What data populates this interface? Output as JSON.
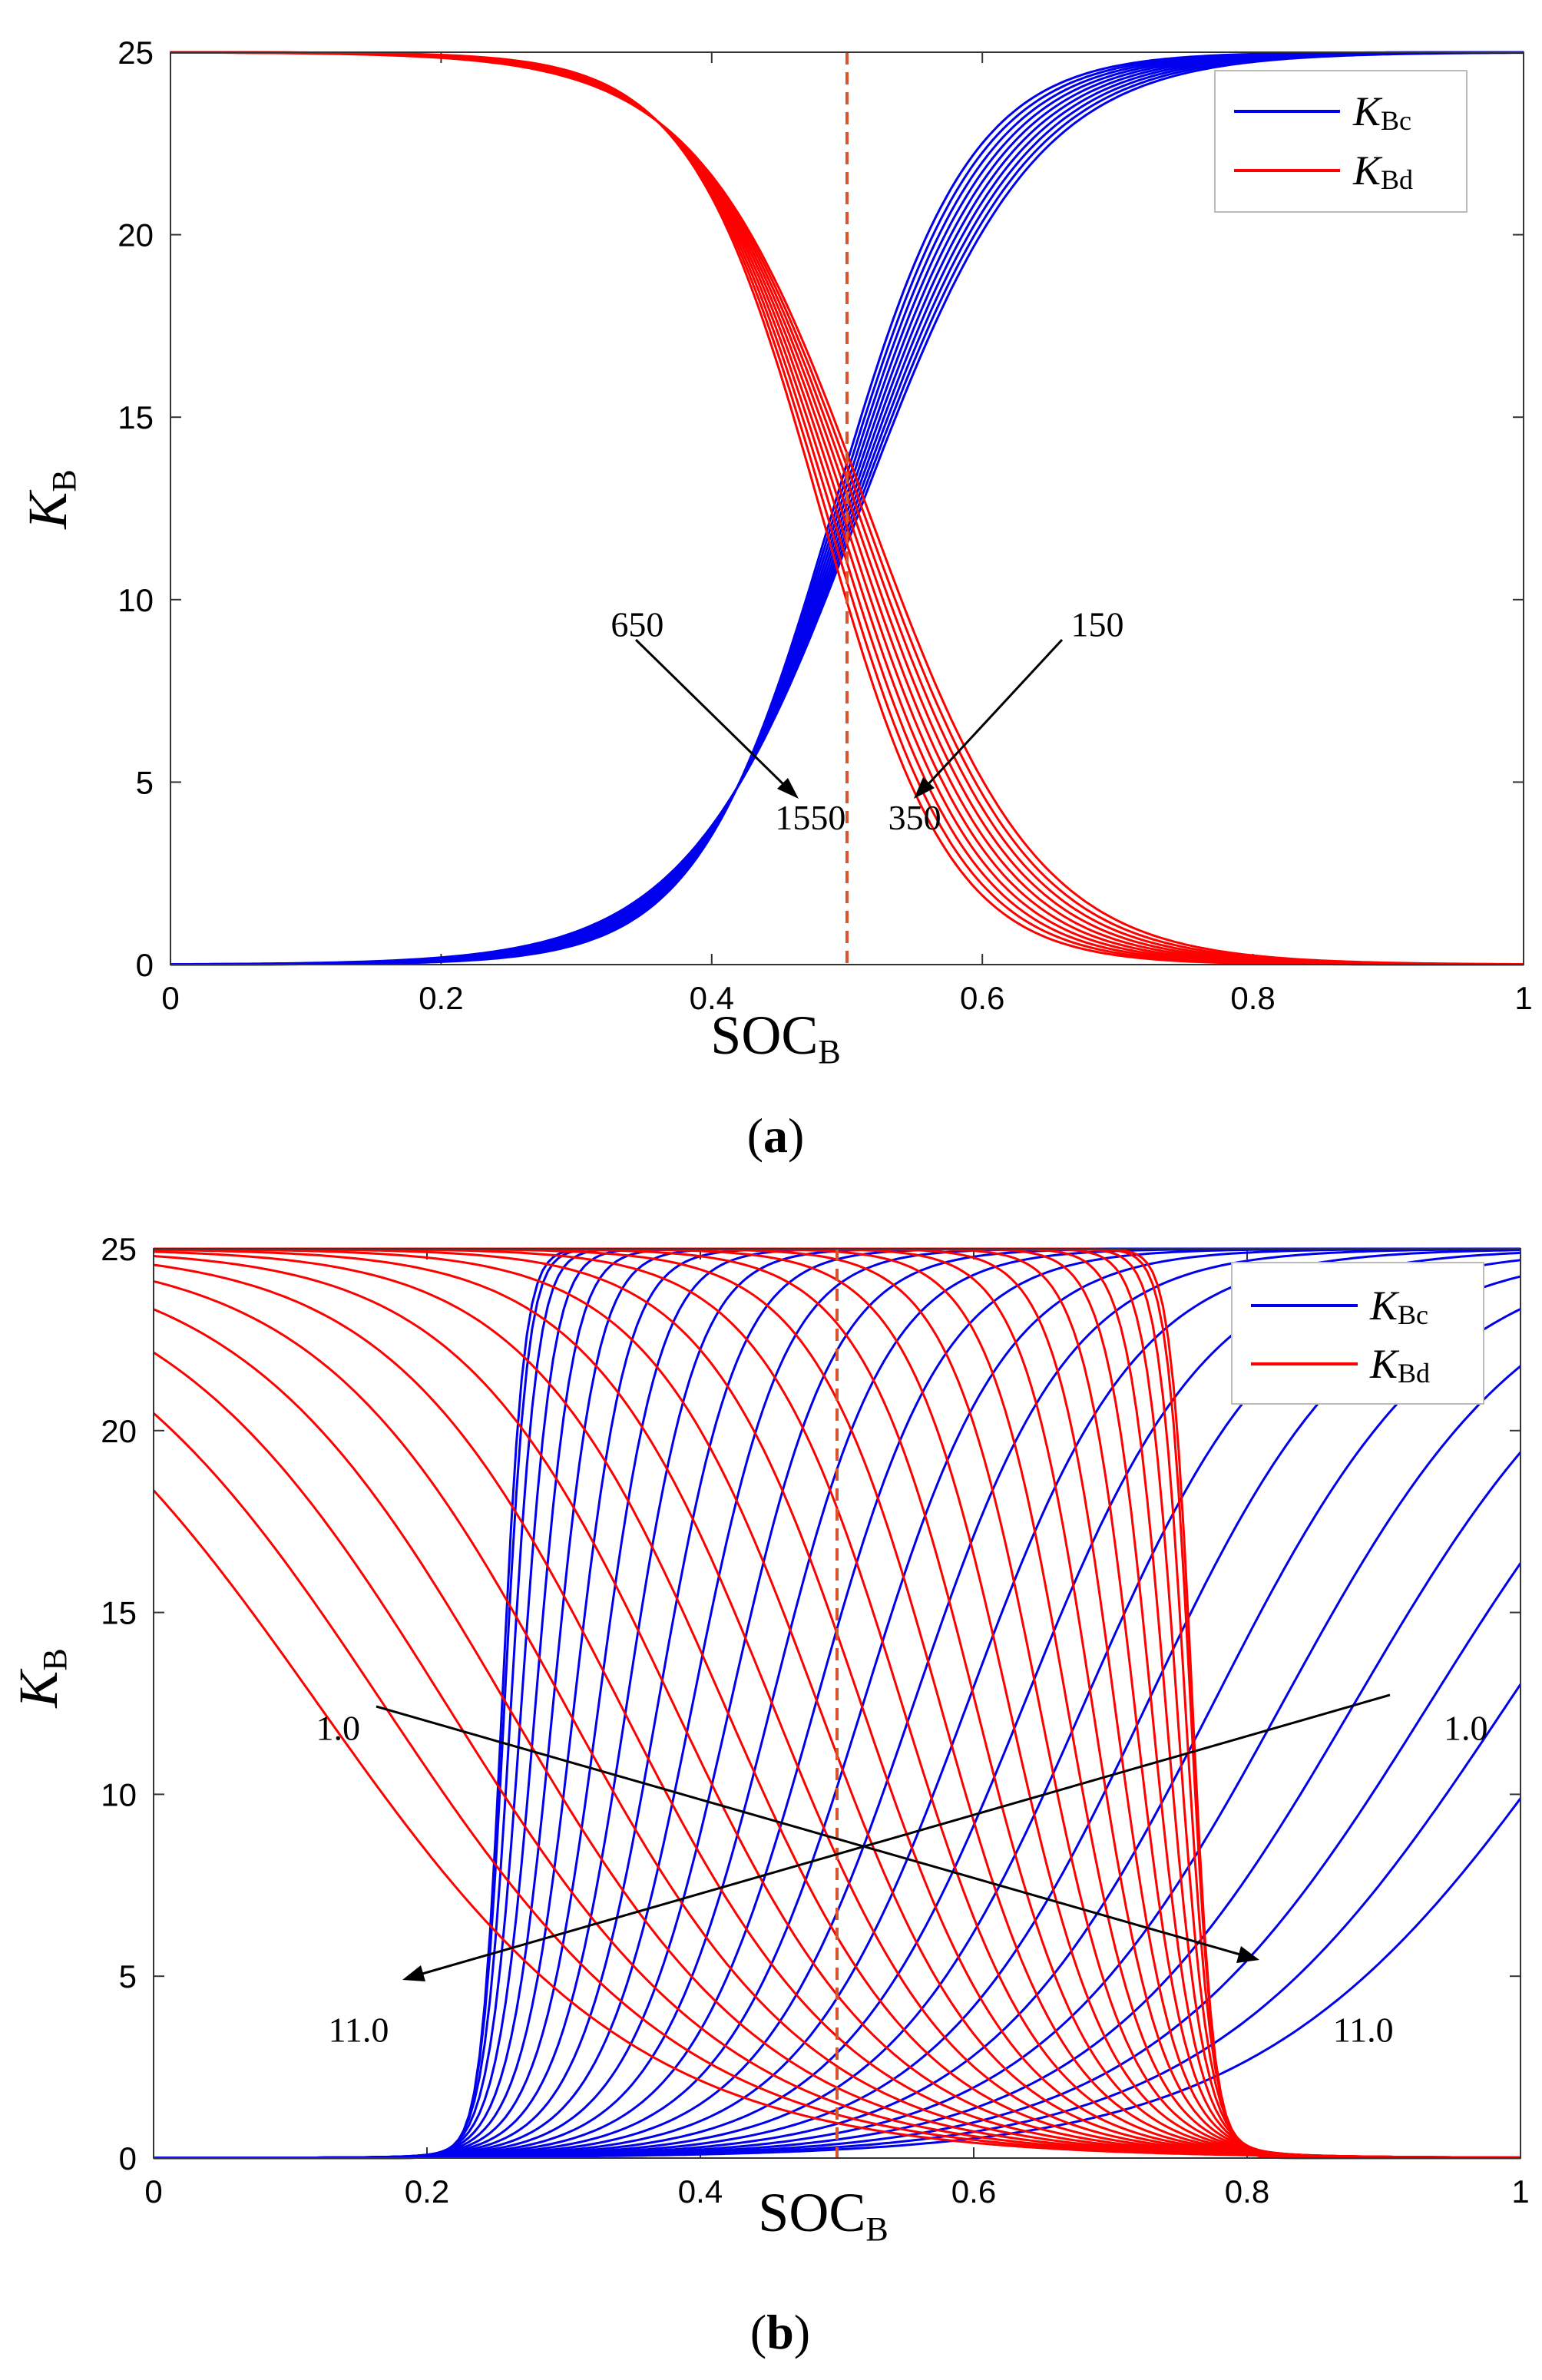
{
  "figure": {
    "panels": [
      {
        "label_open": "(",
        "label_letter": "a",
        "label_close": ")"
      },
      {
        "label_open": "(",
        "label_letter": "b",
        "label_close": ")"
      }
    ]
  },
  "chart_data": [
    {
      "type": "line",
      "panel": "a",
      "xlabel_main": "SOC",
      "xlabel_sub": "B",
      "ylabel_main": "K",
      "ylabel_sub": "B",
      "xlim": [
        0,
        1
      ],
      "ylim": [
        0,
        25
      ],
      "xticks": [
        0,
        0.2,
        0.4,
        0.6,
        0.8,
        1
      ],
      "xtick_labels": [
        "0",
        "0.2",
        "0.4",
        "0.6",
        "0.8",
        "1"
      ],
      "yticks": [
        0,
        5,
        10,
        15,
        20,
        25
      ],
      "ytick_labels": [
        "0",
        "5",
        "10",
        "15",
        "20",
        "25"
      ],
      "reference_line": {
        "x": 0.5,
        "style": "dashed",
        "color": "#d9542c"
      },
      "legend": [
        {
          "main": "K",
          "sub": "Bc",
          "color": "#0000ee"
        },
        {
          "main": "K",
          "sub": "Bd",
          "color": "#ff0000"
        }
      ],
      "series": [
        {
          "name": "KBc",
          "color": "#0000ee",
          "model": "logistic",
          "ymax": 25,
          "center": [
            0.49,
            0.51
          ],
          "width": [
            0.05,
            0.064
          ],
          "count": 10
        },
        {
          "name": "KBd",
          "color": "#ff0000",
          "model": "logistic-decreasing",
          "ymax": 25,
          "center": [
            0.48,
            0.515
          ],
          "width": [
            0.048,
            0.062
          ],
          "count": 10
        }
      ],
      "annotations": [
        {
          "text": "650",
          "x": 0.345,
          "y": 9.0
        },
        {
          "text": "1550",
          "x": 0.473,
          "y": 3.7
        },
        {
          "text": "150",
          "x": 0.685,
          "y": 9.0
        },
        {
          "text": "350",
          "x": 0.55,
          "y": 3.7
        }
      ]
    },
    {
      "type": "line",
      "panel": "b",
      "xlabel_main": "SOC",
      "xlabel_sub": "B",
      "ylabel_main": "K",
      "ylabel_sub": "B",
      "xlim": [
        0,
        1
      ],
      "ylim": [
        0,
        25
      ],
      "xticks": [
        0,
        0.2,
        0.4,
        0.6,
        0.8,
        1
      ],
      "xtick_labels": [
        "0",
        "0.2",
        "0.4",
        "0.6",
        "0.8",
        "1"
      ],
      "yticks": [
        0,
        5,
        10,
        15,
        20,
        25
      ],
      "ytick_labels": [
        "0",
        "5",
        "10",
        "15",
        "20",
        "25"
      ],
      "reference_line": {
        "x": 0.5,
        "style": "dashed",
        "color": "#d9542c"
      },
      "legend": [
        {
          "main": "K",
          "sub": "Bc",
          "color": "#0000ee"
        },
        {
          "main": "K",
          "sub": "Bd",
          "color": "#ff0000"
        }
      ],
      "series": [
        {
          "name": "KBc",
          "color": "#0000ee",
          "model": "spread-logistic",
          "ymax": 25,
          "center_start": 0.255,
          "center_end": 1.05,
          "count": 26
        },
        {
          "name": "KBd",
          "color": "#ff0000",
          "model": "spread-logistic-decreasing",
          "ymax": 25,
          "center_start": 0.76,
          "center_end": 0.12,
          "count": 26
        }
      ],
      "annotations": [
        {
          "text": "1.0",
          "x": 0.135,
          "y": 11.5
        },
        {
          "text": "11.0",
          "x": 0.15,
          "y": 3.2
        },
        {
          "text": "1.0",
          "x": 0.96,
          "y": 11.5
        },
        {
          "text": "11.0",
          "x": 0.885,
          "y": 3.2
        }
      ]
    }
  ]
}
